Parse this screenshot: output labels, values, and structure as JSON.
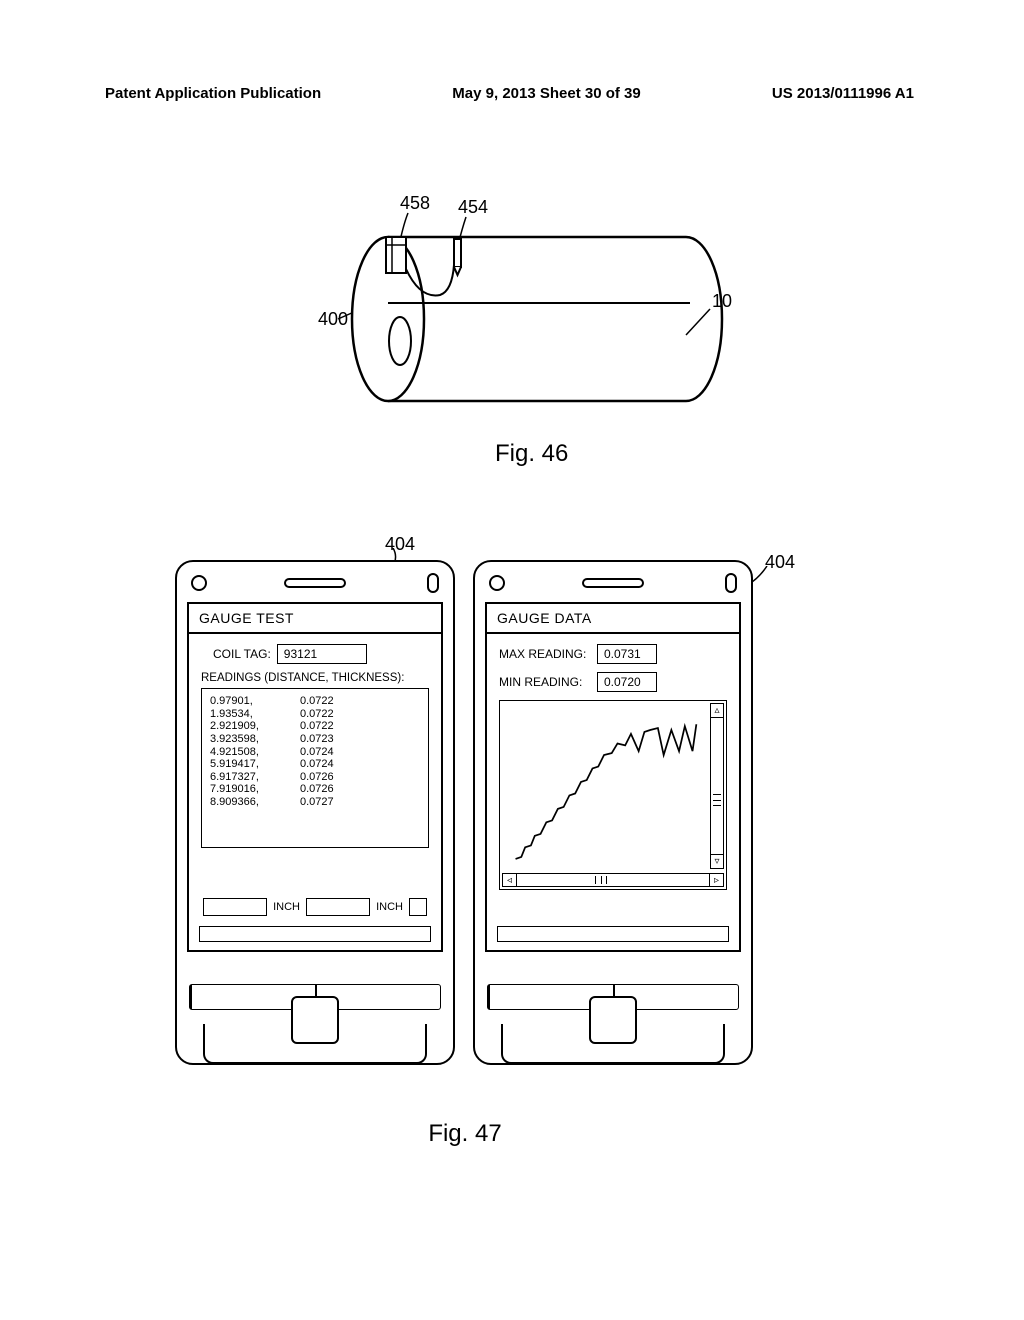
{
  "header": {
    "left": "Patent Application Publication",
    "mid": "May 9, 2013  Sheet 30 of 39",
    "right": "US 2013/0111996 A1"
  },
  "fig46": {
    "label": "Fig. 46",
    "refs": {
      "r458": "458",
      "r454": "454",
      "r400": "400",
      "r10": "10"
    }
  },
  "fig47": {
    "label": "Fig. 47",
    "ref404a": "404",
    "ref404b": "404",
    "left": {
      "title": "GAUGE TEST",
      "coil_tag_label": "COIL TAG:",
      "coil_tag_value": "93121",
      "readings_label": "READINGS (DISTANCE, THICKNESS):",
      "readings": [
        {
          "d": "0.97901,",
          "t": "0.0722"
        },
        {
          "d": "1.93534,",
          "t": "0.0722"
        },
        {
          "d": "2.921909,",
          "t": "0.0722"
        },
        {
          "d": "3.923598,",
          "t": "0.0723"
        },
        {
          "d": "4.921508,",
          "t": "0.0724"
        },
        {
          "d": "5.919417,",
          "t": "0.0724"
        },
        {
          "d": "6.917327,",
          "t": "0.0726"
        },
        {
          "d": "7.919016,",
          "t": "0.0726"
        },
        {
          "d": "8.909366,",
          "t": "0.0727"
        }
      ],
      "unit": "INCH"
    },
    "right": {
      "title": "GAUGE DATA",
      "max_label": "MAX READING:",
      "max_value": "0.0731",
      "min_label": "MIN READING:",
      "min_value": "0.0720",
      "chart": {
        "stroke": "#000000",
        "stroke_width": 1.8,
        "points": [
          [
            12,
            160
          ],
          [
            18,
            158
          ],
          [
            22,
            148
          ],
          [
            28,
            146
          ],
          [
            32,
            136
          ],
          [
            38,
            134
          ],
          [
            44,
            122
          ],
          [
            50,
            120
          ],
          [
            56,
            108
          ],
          [
            62,
            106
          ],
          [
            68,
            94
          ],
          [
            74,
            92
          ],
          [
            80,
            80
          ],
          [
            86,
            78
          ],
          [
            92,
            66
          ],
          [
            98,
            64
          ],
          [
            104,
            52
          ],
          [
            112,
            50
          ],
          [
            118,
            40
          ],
          [
            126,
            42
          ],
          [
            132,
            30
          ],
          [
            140,
            48
          ],
          [
            146,
            28
          ],
          [
            152,
            26
          ],
          [
            160,
            24
          ],
          [
            166,
            52
          ],
          [
            174,
            26
          ],
          [
            182,
            48
          ],
          [
            188,
            22
          ],
          [
            196,
            48
          ],
          [
            200,
            20
          ]
        ]
      }
    }
  }
}
